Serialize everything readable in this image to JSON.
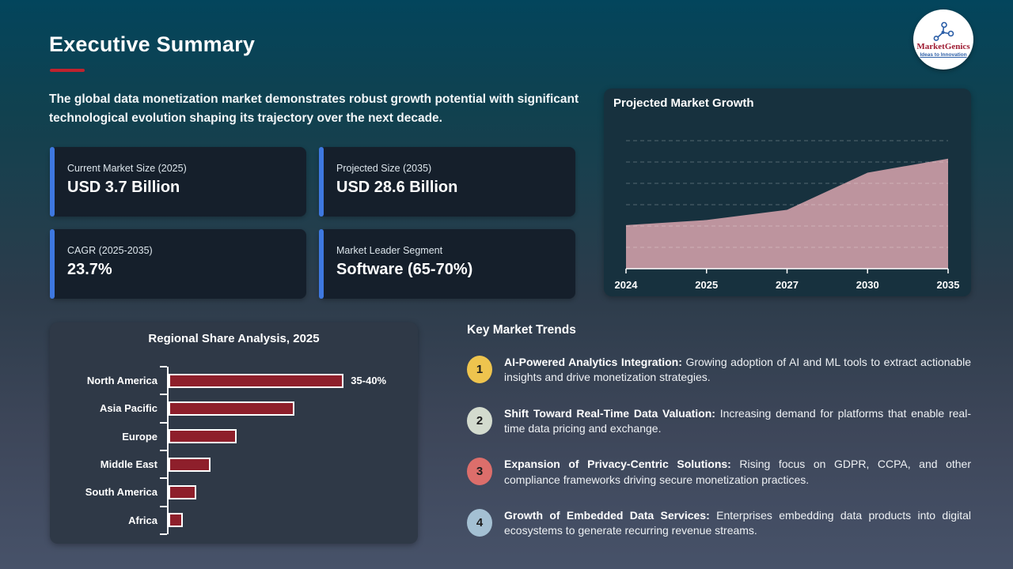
{
  "page": {
    "title": "Executive Summary",
    "intro": "The global data monetization market demonstrates robust growth potential with significant technological evolution shaping its trajectory over the next decade.",
    "accent_red": "#c0222e"
  },
  "logo": {
    "name": "MarketGenics",
    "tagline": "Ideas to Innovation",
    "brand_color": "#9e1b32",
    "icon": "molecule-network-icon",
    "icon_color": "#2b5ea7"
  },
  "stats": {
    "accent_color": "#3e78e0",
    "cards": [
      {
        "label": "Current Market Size (2025)",
        "value": "USD 3.7 Billion"
      },
      {
        "label": "Projected Size (2035)",
        "value": "USD 28.6 Billion"
      },
      {
        "label": "CAGR (2025-2035)",
        "value": "23.7%"
      },
      {
        "label": "Market Leader Segment",
        "value": "Software (65-70%)"
      }
    ]
  },
  "trends": {
    "heading": "Key Market Trends",
    "items": [
      {
        "number": "1",
        "color": "#eec44e",
        "title_bold": "AI-Powered Analytics Integration:",
        "description": "Growing adoption of AI and ML tools to extract actionable insights and drive monetization strategies."
      },
      {
        "number": "2",
        "color": "#d3dbce",
        "title_bold": "Shift Toward Real-Time Data Valuation:",
        "description": "Increasing demand for platforms that enable real-time data pricing and exchange."
      },
      {
        "number": "3",
        "color": "#dc6e6b",
        "title_bold": "Expansion of Privacy-Centric Solutions:",
        "description": "Rising focus on GDPR, CCPA, and other compliance frameworks driving secure monetization practices."
      },
      {
        "number": "4",
        "color": "#a4c0d3",
        "title_bold": "Growth of Embedded Data Services:",
        "description": "Enterprises embedding data products into digital ecosystems to generate recurring revenue streams."
      }
    ]
  },
  "chart_data": [
    {
      "type": "area",
      "title": "Projected Market Growth",
      "x": [
        "2024",
        "2025",
        "2027",
        "2030",
        "2035"
      ],
      "values": [
        34,
        38,
        46,
        75,
        86
      ],
      "ylabel": "",
      "xlabel": "",
      "ylim": [
        0,
        100
      ],
      "y_axis_labeled": false,
      "note": "y-axis unlabeled; values are relative heights (0-100) estimated against 6 evenly spaced dashed gridlines",
      "gridlines": "horizontal dashed",
      "legend": "none",
      "area_color": "#bd949e"
    },
    {
      "type": "bar",
      "title": "Regional Share Analysis, 2025",
      "orientation": "horizontal",
      "categories": [
        "North America",
        "Asia Pacific",
        "Europe",
        "Middle East",
        "South America",
        "Africa"
      ],
      "values": [
        37.5,
        27,
        14.5,
        9,
        6,
        3
      ],
      "unit": "percent market share (estimated; only first bar labeled)",
      "value_labels": [
        "35-40%",
        "",
        "",
        "",
        "",
        ""
      ],
      "xlabel": "",
      "ylabel": "",
      "legend": "none",
      "bar_color": "#8e1f2b",
      "bar_border_color": "#ffffff"
    }
  ]
}
